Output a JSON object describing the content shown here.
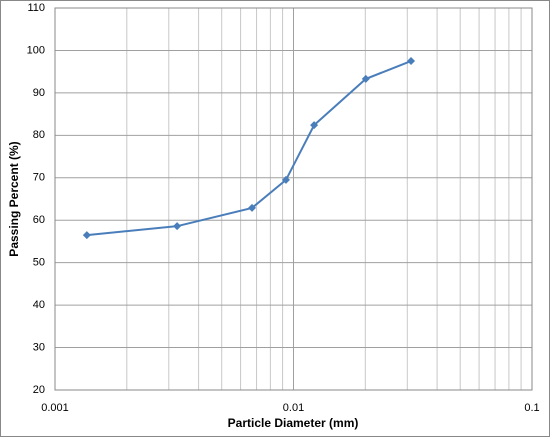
{
  "chart_data": {
    "type": "line",
    "x_label": "Particle Diameter (mm)",
    "y_label": "Passing Percent (%)",
    "x": [
      0.00136,
      0.00325,
      0.0067,
      0.0093,
      0.0122,
      0.0201,
      0.0311
    ],
    "series": [
      {
        "color": "#4a7ebb",
        "values": [
          56.5,
          58.6,
          62.9,
          69.5,
          82.4,
          93.3,
          97.5
        ]
      }
    ],
    "xlim": [
      0.001,
      0.1
    ],
    "xticks": [
      0.001,
      0.01,
      0.1
    ],
    "x_log": true,
    "ylim": [
      20,
      110
    ],
    "yticks": [
      20,
      30,
      40,
      50,
      60,
      70,
      80,
      90,
      100,
      110
    ],
    "grid": true,
    "minor_grid": true
  }
}
